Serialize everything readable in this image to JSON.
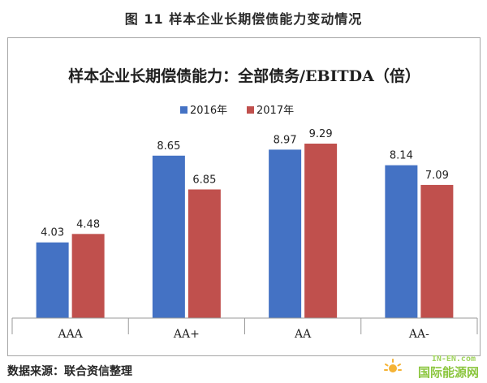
{
  "figure_label": "图 11    样本企业长期偿债能力变动情况",
  "source_note": "数据来源：联合资信整理",
  "watermark": {
    "line1": "IN-EN.com",
    "line2": "国际能源网"
  },
  "colors": {
    "series_2016": "#4472c4",
    "series_2017": "#c0504d",
    "axis": "#9a9a9a"
  },
  "chart_data": {
    "type": "bar",
    "title": "样本企业长期偿债能力：全部债务/EBITDA（倍）",
    "categories": [
      "AAA",
      "AA+",
      "AA",
      "AA-"
    ],
    "series": [
      {
        "name": "2016年",
        "values": [
          4.03,
          8.65,
          8.97,
          8.14
        ]
      },
      {
        "name": "2017年",
        "values": [
          4.48,
          6.85,
          9.29,
          7.09
        ]
      }
    ],
    "ylim": [
      0,
      10.5
    ],
    "grid": false,
    "legend_position": "top-center",
    "data_labels": true
  }
}
